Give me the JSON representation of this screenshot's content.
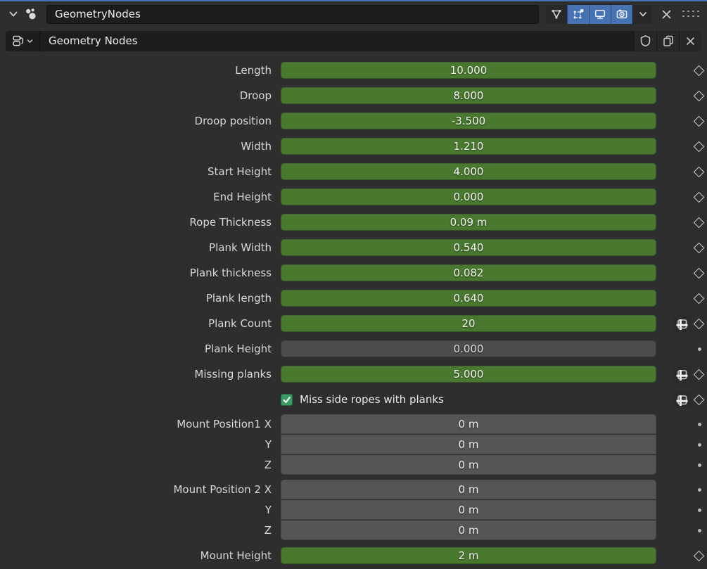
{
  "colors": {
    "background": "#2e2e2e",
    "field_dark": "#1d1d1d",
    "slider_green": "#49792e",
    "slider_disabled_gray": "#4c4c4c",
    "vector_field_gray": "#555555",
    "toggle_active_blue": "#4772b3",
    "checkbox_green": "#3b9b60",
    "top_accent_blue": "#4772b3"
  },
  "modifier_header": {
    "name_value": "GeometryNodes",
    "collapse_icon": "chevron-down-icon",
    "modifier_icon": "geometry-nodes-icon",
    "display_toggles": [
      {
        "icon": "on-cage-icon",
        "active": false
      },
      {
        "icon": "edit-mode-icon",
        "active": true
      },
      {
        "icon": "realtime-display-icon",
        "active": true
      },
      {
        "icon": "render-display-icon",
        "active": true
      }
    ],
    "extras_menu_icon": "chevron-down-icon",
    "close_icon": "close-icon",
    "drag_handle_icon": "grip-dots-icon"
  },
  "node_group_selector": {
    "browse_icon": "node-tree-icon",
    "name_value": "Geometry Nodes",
    "fake_user_icon": "shield-icon",
    "duplicate_icon": "copy-icon",
    "unlink_icon": "close-icon"
  },
  "params": {
    "rows": [
      {
        "kind": "slider",
        "label": "Length",
        "value": "10.000",
        "attr_toggle": false,
        "socket": "diamond"
      },
      {
        "kind": "slider",
        "label": "Droop",
        "value": "8.000",
        "attr_toggle": false,
        "socket": "diamond"
      },
      {
        "kind": "slider",
        "label": "Droop position",
        "value": "-3.500",
        "attr_toggle": false,
        "socket": "diamond"
      },
      {
        "kind": "slider",
        "label": "Width",
        "value": "1.210",
        "attr_toggle": false,
        "socket": "diamond"
      },
      {
        "kind": "slider",
        "label": "Start Height",
        "value": "4.000",
        "attr_toggle": false,
        "socket": "diamond"
      },
      {
        "kind": "slider",
        "label": "End Height",
        "value": "0.000",
        "attr_toggle": false,
        "socket": "diamond"
      },
      {
        "kind": "slider",
        "label": "Rope Thickness",
        "value": "0.09 m",
        "attr_toggle": false,
        "socket": "diamond"
      },
      {
        "kind": "slider",
        "label": "Plank Width",
        "value": "0.540",
        "attr_toggle": false,
        "socket": "diamond"
      },
      {
        "kind": "slider",
        "label": "Plank thickness",
        "value": "0.082",
        "attr_toggle": false,
        "socket": "diamond"
      },
      {
        "kind": "slider",
        "label": "Plank length",
        "value": "0.640",
        "attr_toggle": false,
        "socket": "diamond"
      },
      {
        "kind": "slider",
        "label": "Plank Count",
        "value": "20",
        "attr_toggle": true,
        "socket": "diamond"
      },
      {
        "kind": "slider_disabled",
        "label": "Plank Height",
        "value": "0.000",
        "attr_toggle": false,
        "socket": "dot"
      },
      {
        "kind": "slider",
        "label": "Missing planks",
        "value": "5.000",
        "attr_toggle": true,
        "socket": "diamond"
      },
      {
        "kind": "checkbox",
        "label": "Miss side ropes with planks",
        "checked": true,
        "attr_toggle": true,
        "socket": "diamond"
      },
      {
        "kind": "vector",
        "labels": [
          "Mount Position1 X",
          "Y",
          "Z"
        ],
        "values": [
          "0 m",
          "0 m",
          "0 m"
        ],
        "socket": "dot"
      },
      {
        "kind": "vector",
        "labels": [
          "Mount Position 2 X",
          "Y",
          "Z"
        ],
        "values": [
          "0 m",
          "0 m",
          "0 m"
        ],
        "socket": "dot"
      },
      {
        "kind": "slider",
        "label": "Mount Height",
        "value": "2 m",
        "attr_toggle": false,
        "socket": "diamond"
      }
    ]
  }
}
